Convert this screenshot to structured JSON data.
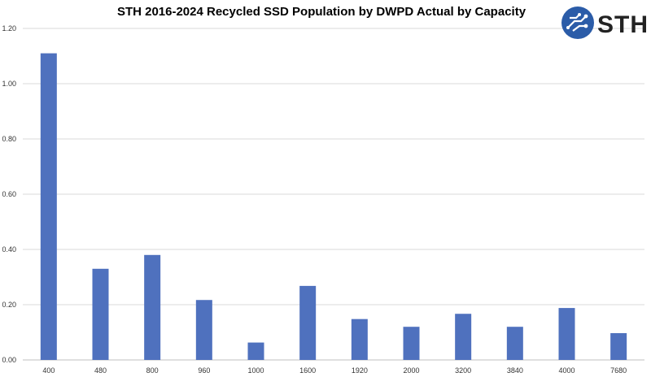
{
  "chart_data": {
    "type": "bar",
    "title": "STH 2016-2024 Recycled SSD Population by DWPD Actual by Capacity",
    "xlabel": "",
    "ylabel": "",
    "categories": [
      "400",
      "480",
      "800",
      "960",
      "1000",
      "1600",
      "1920",
      "2000",
      "3200",
      "3840",
      "4000",
      "7680"
    ],
    "values": [
      1.11,
      0.33,
      0.38,
      0.217,
      0.063,
      0.268,
      0.148,
      0.12,
      0.167,
      0.12,
      0.188,
      0.097
    ],
    "ylim": [
      0,
      1.2
    ],
    "yticks": [
      "0.00",
      "0.20",
      "0.40",
      "0.60",
      "0.80",
      "1.00",
      "1.20"
    ],
    "ytick_values": [
      0,
      0.2,
      0.4,
      0.6,
      0.8,
      1.0,
      1.2
    ],
    "grid": true,
    "legend": "none",
    "bar_color": "#4f71be"
  },
  "logo": {
    "text": "STH",
    "icon": "circuit-globe-icon",
    "color": "#2b5ca8"
  }
}
